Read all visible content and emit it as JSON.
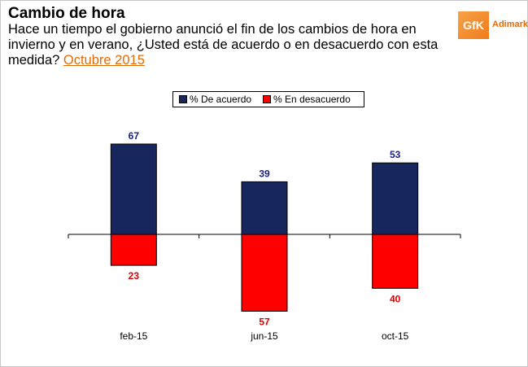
{
  "header": {
    "title": "Cambio de hora",
    "question": "Hace un tiempo el gobierno anunció el fin de los cambios de hora en invierno y en verano, ¿Usted está de acuerdo o en desacuerdo con esta medida?",
    "date_link": "Octubre 2015"
  },
  "logo": {
    "mark": "GfK",
    "word": "Adimark"
  },
  "colors": {
    "agree": "#17275e",
    "disagree": "#ff0000",
    "agree_label": "#1a237e",
    "disagree_label": "#e00000",
    "accent": "#e36c09"
  },
  "chart_data": {
    "type": "bar",
    "title": "",
    "xlabel": "",
    "ylabel": "",
    "categories": [
      "feb-15",
      "jun-15",
      "oct-15"
    ],
    "series": [
      {
        "name": "% De acuerdo",
        "values": [
          67,
          39,
          53
        ],
        "sign": 1
      },
      {
        "name": "% En desacuerdo",
        "values": [
          23,
          57,
          40
        ],
        "sign": -1
      }
    ],
    "ylim": [
      -60,
      70
    ],
    "grid": false,
    "legend_position": "top-center"
  }
}
